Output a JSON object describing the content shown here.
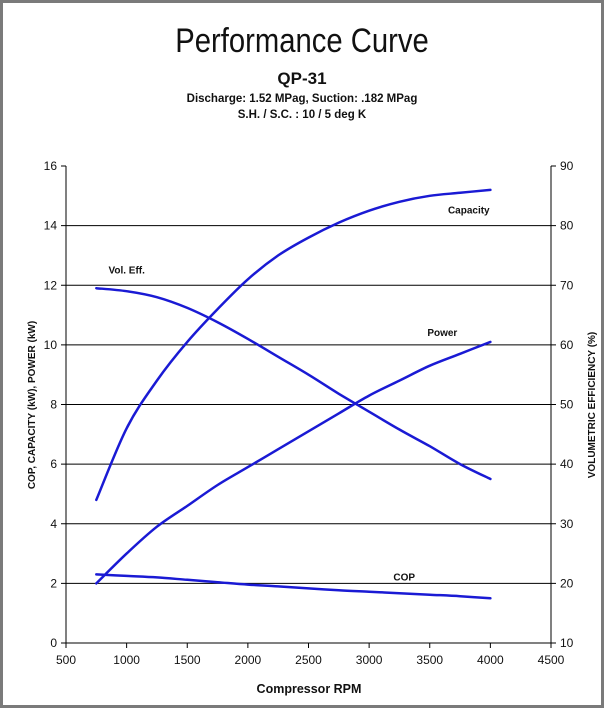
{
  "title": "Performance Curve",
  "subtitle": "QP-31",
  "conditions": [
    "Discharge: 1.52 MPag, Suction: .182 MPag",
    "S.H. / S.C. : 10 / 5 deg K"
  ],
  "colors": {
    "curve": "#1a1ad4",
    "grid": "#000000",
    "frame": "#7a7a7a"
  },
  "chart_data": {
    "type": "line",
    "xlabel": "Compressor RPM",
    "ylabel": "COP, CAPACITY (kW), POWER (kW)",
    "y2label": "VOLUMETRIC EFFICIENCY (%)",
    "xlim": [
      500,
      4500
    ],
    "ylim": [
      0,
      16
    ],
    "y2lim": [
      10,
      90
    ],
    "xticks": [
      500,
      1000,
      1500,
      2000,
      2500,
      3000,
      3500,
      4000,
      4500
    ],
    "yticks": [
      0,
      2,
      4,
      6,
      8,
      10,
      12,
      14,
      16
    ],
    "y2ticks": [
      10,
      20,
      30,
      40,
      50,
      60,
      70,
      80,
      90
    ],
    "grid": "horizontal",
    "series": [
      {
        "name": "Capacity",
        "axis": "left",
        "x": [
          750,
          1000,
          1250,
          1500,
          1750,
          2000,
          2250,
          2500,
          2750,
          3000,
          3250,
          3500,
          3750,
          4000
        ],
        "y": [
          4.8,
          7.2,
          8.8,
          10.1,
          11.2,
          12.2,
          13.0,
          13.6,
          14.1,
          14.5,
          14.8,
          15.0,
          15.1,
          15.2
        ]
      },
      {
        "name": "Power",
        "axis": "left",
        "x": [
          750,
          1000,
          1250,
          1500,
          1750,
          2000,
          2250,
          2500,
          2750,
          3000,
          3250,
          3500,
          3750,
          4000
        ],
        "y": [
          2.0,
          3.0,
          3.9,
          4.6,
          5.3,
          5.9,
          6.5,
          7.1,
          7.7,
          8.3,
          8.8,
          9.3,
          9.7,
          10.1
        ]
      },
      {
        "name": "COP",
        "axis": "left",
        "x": [
          750,
          1000,
          1250,
          1500,
          1750,
          2000,
          2250,
          2500,
          2750,
          3000,
          3250,
          3500,
          3750,
          4000
        ],
        "y": [
          2.3,
          2.25,
          2.2,
          2.12,
          2.04,
          1.96,
          1.9,
          1.83,
          1.77,
          1.72,
          1.67,
          1.62,
          1.57,
          1.5
        ]
      },
      {
        "name": "Vol. Eff.",
        "axis": "right",
        "x": [
          750,
          1000,
          1250,
          1500,
          1750,
          2000,
          2250,
          2500,
          2750,
          3000,
          3250,
          3500,
          3750,
          4000
        ],
        "y": [
          69.5,
          69.0,
          68.0,
          66.2,
          63.8,
          61.0,
          58.0,
          55.0,
          51.8,
          48.8,
          45.8,
          43.0,
          40.0,
          37.5
        ]
      }
    ],
    "annotations": [
      {
        "text": "Capacity",
        "x": 3650,
        "y": 14.4
      },
      {
        "text": "Vol. Eff.",
        "x": 850,
        "y": 12.4
      },
      {
        "text": "Power",
        "x": 3480,
        "y": 10.3
      },
      {
        "text": "COP",
        "x": 3200,
        "y": 2.1
      }
    ]
  }
}
